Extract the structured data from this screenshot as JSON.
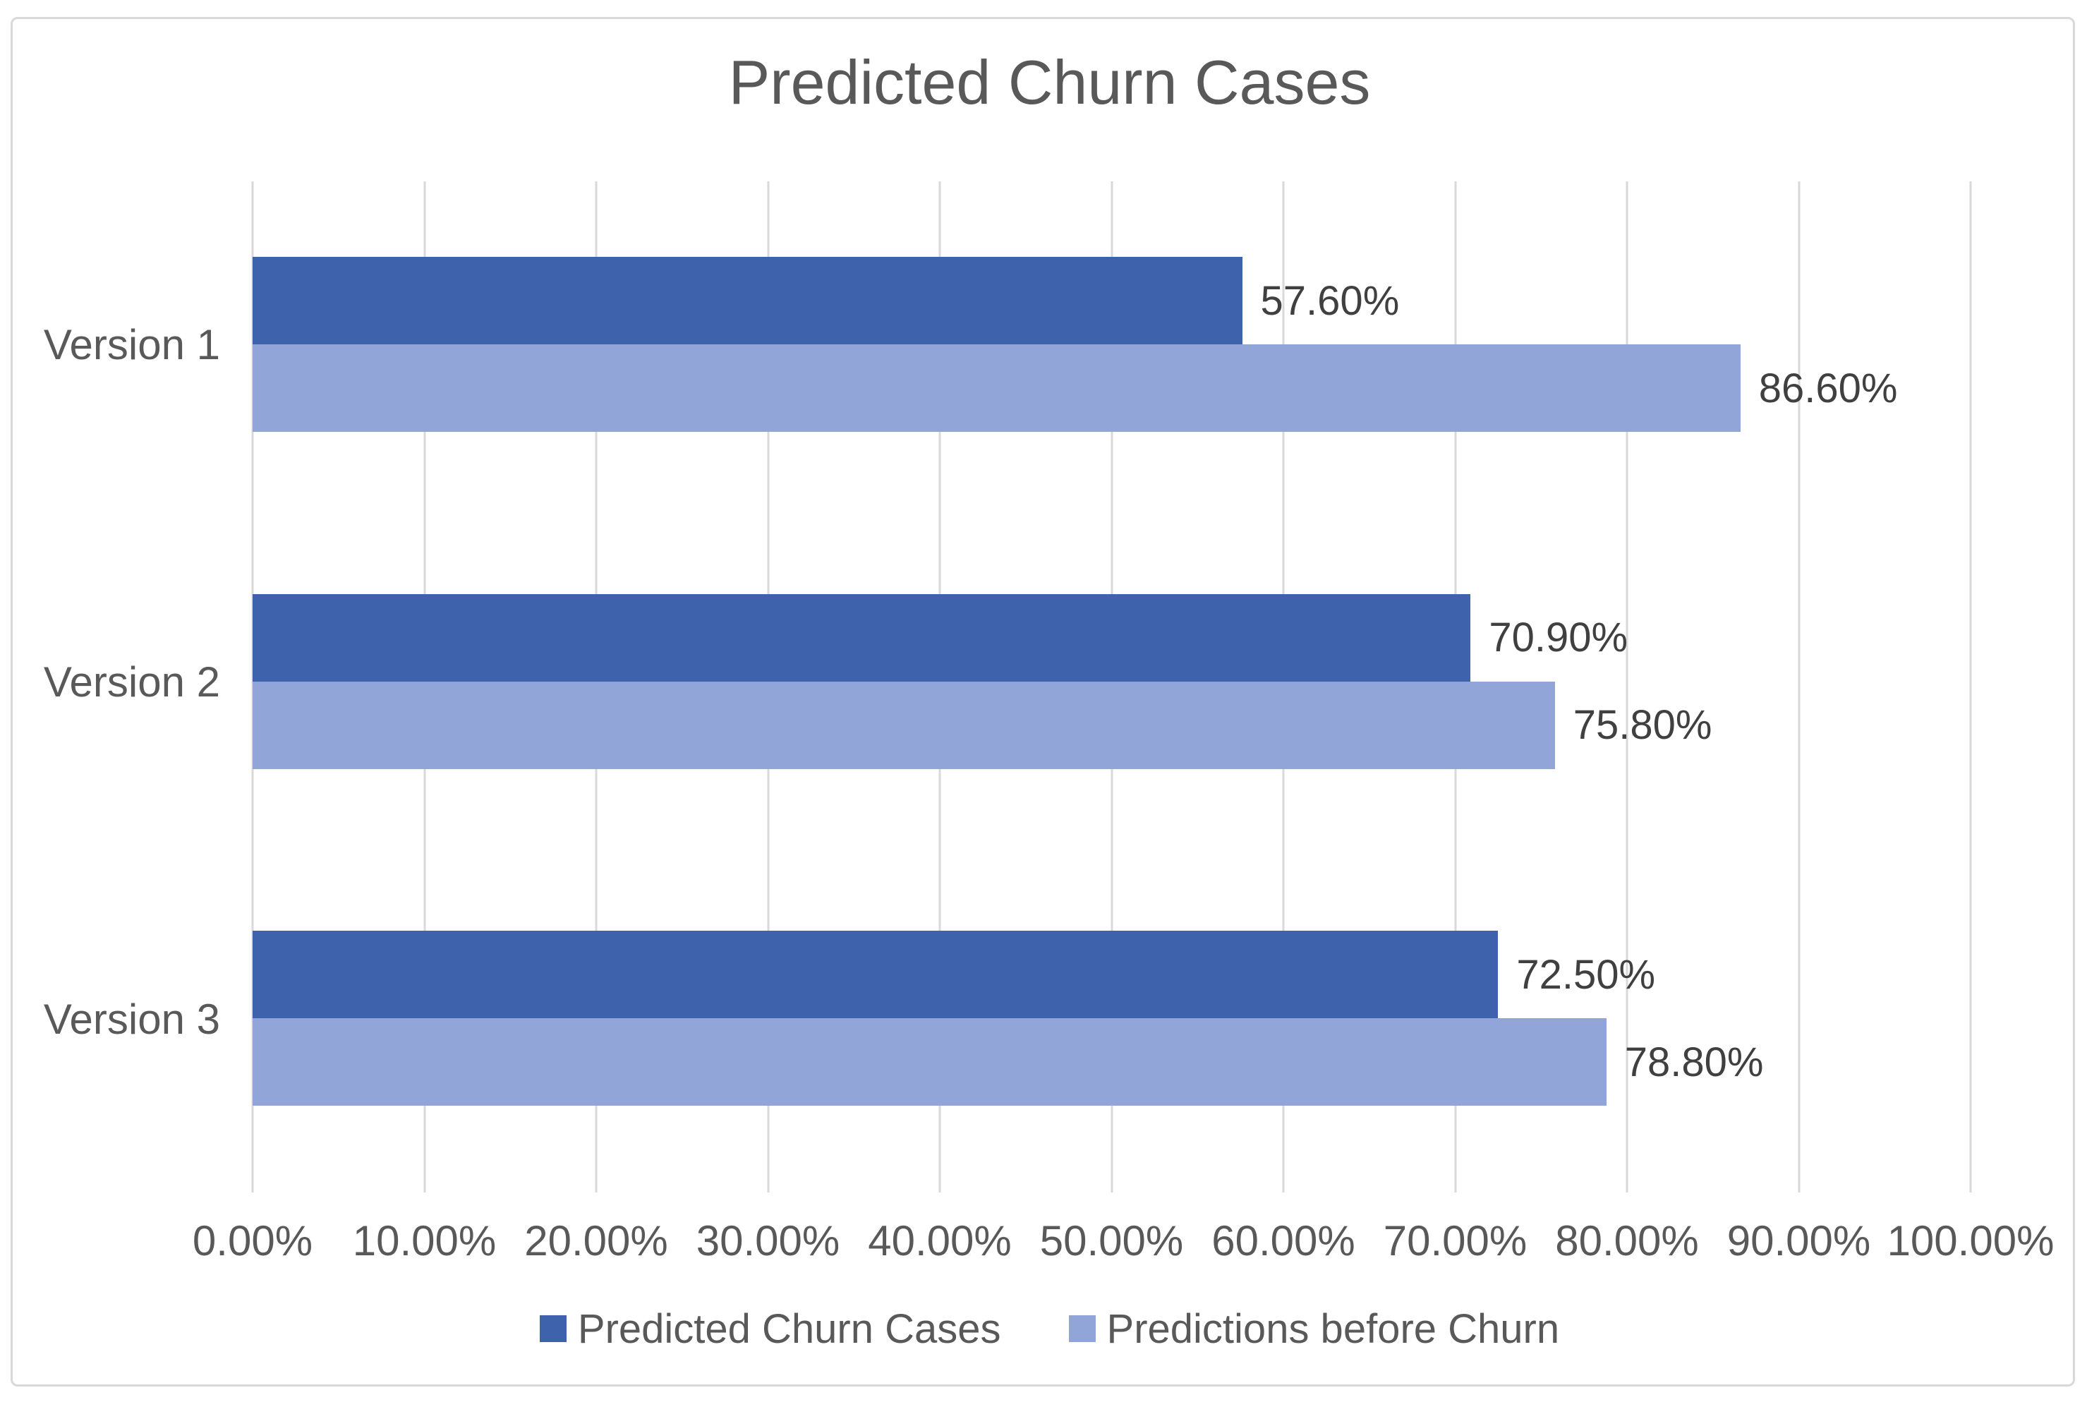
{
  "chart_data": {
    "type": "bar",
    "orientation": "horizontal",
    "title": "Predicted Churn Cases",
    "categories": [
      "Version 1",
      "Version 2",
      "Version 3"
    ],
    "series": [
      {
        "name": "Predicted Churn Cases",
        "color": "#3E63AC",
        "values": [
          57.6,
          70.9,
          72.5
        ],
        "labels": [
          "57.60%",
          "70.90%",
          "72.50%"
        ]
      },
      {
        "name": "Predictions before Churn",
        "color": "#92A5D8",
        "values": [
          86.6,
          75.8,
          78.8
        ],
        "labels": [
          "86.60%",
          "75.80%",
          "78.80%"
        ]
      }
    ],
    "x_axis": {
      "min": 0,
      "max": 100,
      "tick_step": 10,
      "tick_labels": [
        "0.00%",
        "10.00%",
        "20.00%",
        "30.00%",
        "40.00%",
        "50.00%",
        "60.00%",
        "70.00%",
        "80.00%",
        "90.00%",
        "100.00%"
      ]
    },
    "ylabel": "",
    "xlabel": "",
    "grid": "vertical",
    "legend_position": "bottom",
    "data_labels": "outside-end"
  },
  "styles": {
    "frame_border_color": "#D9D9D9",
    "gridline_color": "#D9D9D9",
    "title_color": "#595959",
    "axis_text_color": "#595959",
    "data_label_color": "#404040",
    "background_color": "#FFFFFF"
  }
}
